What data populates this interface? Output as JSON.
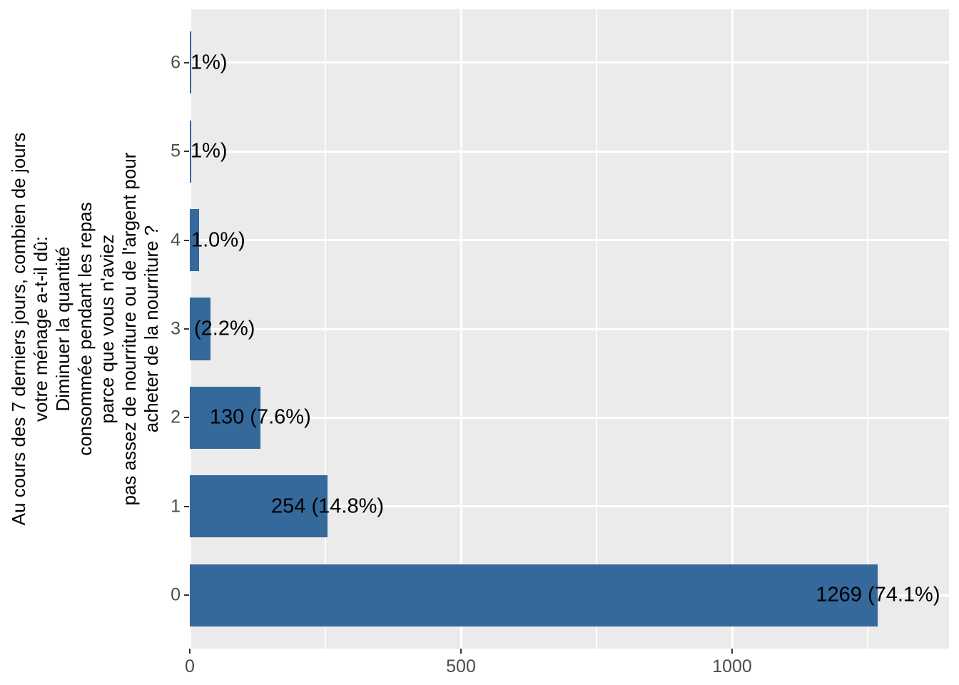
{
  "chart_data": {
    "type": "bar",
    "orientation": "horizontal",
    "title": "",
    "xlabel": "",
    "ylabel_lines": [
      "Au cours des 7 derniers jours, combien de jours",
      "votre ménage a-t-il dû:",
      "Diminuer la quantité",
      "consommée pendant les repas",
      "parce que vous n'aviez",
      "pas assez de nourriture ou de l'argent pour",
      "acheter de la nourriture ?"
    ],
    "categories": [
      "0",
      "1",
      "2",
      "3",
      "4",
      "5",
      "6"
    ],
    "values": [
      1269,
      254,
      130,
      38,
      17,
      3,
      2
    ],
    "bar_labels": [
      "1269 (74.1%)",
      "254 (14.8%)",
      "130 (7.6%)",
      "(2.2%)",
      "1.0%)",
      "1%)",
      "1%)"
    ],
    "bar_label_anchor": [
      "center",
      "center",
      "center",
      "panel-edge",
      "panel-edge",
      "panel-edge",
      "panel-edge"
    ],
    "xlim": [
      0,
      1400
    ],
    "x_ticks": [
      "0",
      "500",
      "1000"
    ],
    "x_tick_values": [
      0,
      500,
      1000
    ],
    "x_minor_gridlines": [
      250,
      750,
      1250
    ],
    "grid": "major-and-minor",
    "legend": "none",
    "colors": {
      "bar_fill": "#35689B",
      "panel_background": "#EBEBEB",
      "gridline": "#FFFFFF",
      "axis_text": "#4D4D4D",
      "tick_mark": "#333333",
      "bar_label_text": "#000000",
      "figure_background": "#FFFFFF"
    }
  }
}
